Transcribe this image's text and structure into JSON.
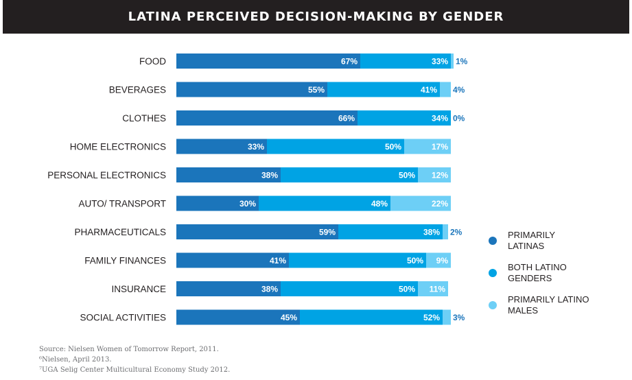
{
  "chart_data": {
    "type": "bar",
    "orientation": "horizontal",
    "stacked": true,
    "title": "LATINA PERCEIVED DECISION-MAKING BY GENDER",
    "categories": [
      "FOOD",
      "BEVERAGES",
      "CLOTHES",
      "HOME ELECTRONICS",
      "PERSONAL ELECTRONICS",
      "AUTO/ TRANSPORT",
      "PHARMACEUTICALS",
      "FAMILY FINANCES",
      "INSURANCE",
      "SOCIAL ACTIVITIES"
    ],
    "series": [
      {
        "name": "PRIMARILY LATINAS",
        "color": "#1b75bb",
        "values": [
          67,
          55,
          66,
          33,
          38,
          30,
          59,
          41,
          38,
          45
        ]
      },
      {
        "name": "BOTH LATINO GENDERS",
        "color": "#00a3e4",
        "values": [
          33,
          41,
          34,
          50,
          50,
          48,
          38,
          50,
          50,
          52
        ]
      },
      {
        "name": "PRIMARILY LATINO MALES",
        "color": "#6dcff6",
        "values": [
          1,
          4,
          0,
          17,
          12,
          22,
          2,
          9,
          11,
          3
        ]
      }
    ],
    "legend_position": "right",
    "grid": false,
    "xlim": [
      0,
      100
    ]
  },
  "footnotes": [
    "Source: Nielsen Women of Tomorrow Report, 2011.",
    "⁶Nielsen, April 2013.",
    "⁷UGA Selig Center Multicultural Economy Study 2012."
  ]
}
